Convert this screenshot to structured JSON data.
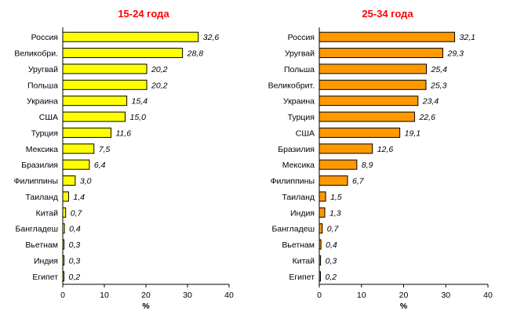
{
  "chart_data": [
    {
      "type": "bar",
      "orientation": "horizontal",
      "title": "15-24 года",
      "categories": [
        "Россия",
        "Великобри.",
        "Уругвай",
        "Польша",
        "Украина",
        "США",
        "Турция",
        "Мексика",
        "Бразилия",
        "Филиппины",
        "Таиланд",
        "Китай",
        "Бангладеш",
        "Вьетнам",
        "Индия",
        "Египет"
      ],
      "values": [
        32.6,
        28.8,
        20.2,
        20.2,
        15.4,
        15.0,
        11.6,
        7.5,
        6.4,
        3.0,
        1.4,
        0.7,
        0.4,
        0.3,
        0.3,
        0.2
      ],
      "value_labels": [
        "32,6",
        "28,8",
        "20,2",
        "20,2",
        "15,4",
        "15,0",
        "11,6",
        "7,5",
        "6,4",
        "3,0",
        "1,4",
        "0,7",
        "0,4",
        "0,3",
        "0,3",
        "0,2"
      ],
      "xlabel": "%",
      "xlim": [
        0,
        40
      ],
      "xticks": [
        0,
        10,
        20,
        30,
        40
      ],
      "bar_color": "#ffff00",
      "grid": false
    },
    {
      "type": "bar",
      "orientation": "horizontal",
      "title": "25-34 года",
      "categories": [
        "Россия",
        "Уругвай",
        "Польша",
        "Великобрит.",
        "Украина",
        "Турция",
        "США",
        "Бразилия",
        "Мексика",
        "Филиппины",
        "Таиланд",
        "Индия",
        "Бангладеш",
        "Вьетнам",
        "Китай",
        "Египет"
      ],
      "values": [
        32.1,
        29.3,
        25.4,
        25.3,
        23.4,
        22.6,
        19.1,
        12.6,
        8.9,
        6.7,
        1.5,
        1.3,
        0.7,
        0.4,
        0.3,
        0.2
      ],
      "value_labels": [
        "32,1",
        "29,3",
        "25,4",
        "25,3",
        "23,4",
        "22,6",
        "19,1",
        "12,6",
        "8,9",
        "6,7",
        "1,5",
        "1,3",
        "0,7",
        "0,4",
        "0,3",
        "0,2"
      ],
      "xlabel": "%",
      "xlim": [
        0,
        40
      ],
      "xticks": [
        0,
        10,
        20,
        30,
        40
      ],
      "bar_color": "#ff9900",
      "grid": false
    }
  ]
}
